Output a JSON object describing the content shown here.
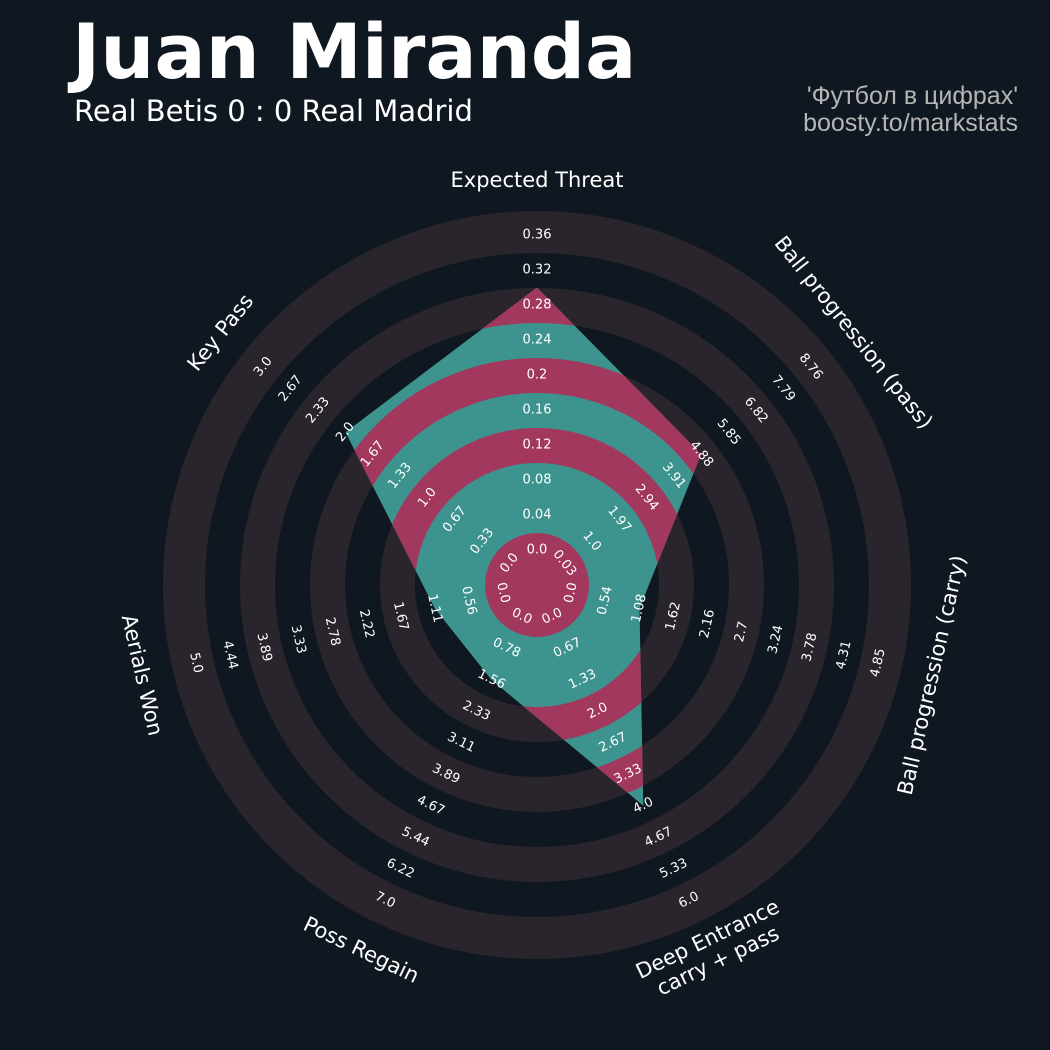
{
  "header": {
    "player_name": "Juan Miranda",
    "match": "Real Betis 0 : 0 Real Madrid",
    "credit_line1": "'Футбол в цифрах'",
    "credit_line2": "boosty.to/markstats"
  },
  "colors": {
    "background": "#0f1820",
    "ring": "#2a252c",
    "polygon_teal": "#3d948f",
    "polygon_magenta": "#a3385e",
    "text": "#ffffff",
    "credit": "#b5b5b5"
  },
  "chart_data": {
    "type": "radar",
    "title": "Juan Miranda",
    "subtitle": "Real Betis 0 : 0 Real Madrid",
    "axes": [
      {
        "label": [
          "Expected Threat"
        ],
        "ticks": [
          "0.0",
          "0.04",
          "0.08",
          "0.12",
          "0.16",
          "0.2",
          "0.24",
          "0.28",
          "0.32",
          "0.36"
        ],
        "min": 0.0,
        "max": 0.36,
        "value": 0.3
      },
      {
        "label": [
          "Ball progression (pass)"
        ],
        "ticks": [
          "0.03",
          "1.0",
          "1.97",
          "2.94",
          "3.91",
          "4.88",
          "5.85",
          "6.82",
          "7.79",
          "8.76"
        ],
        "min": 0.03,
        "max": 8.76,
        "value": 4.88
      },
      {
        "label": [
          "Ball progression (carry)"
        ],
        "ticks": [
          "0.0",
          "0.54",
          "1.08",
          "1.62",
          "2.16",
          "2.7",
          "3.24",
          "3.78",
          "4.31",
          "4.85"
        ],
        "min": 0.0,
        "max": 4.85,
        "value": 1.08
      },
      {
        "label": [
          "Deep Entrance",
          "carry + pass"
        ],
        "ticks": [
          "0.0",
          "0.67",
          "1.33",
          "2.0",
          "2.67",
          "3.33",
          "4.0",
          "4.67",
          "5.33",
          "6.0"
        ],
        "min": 0.0,
        "max": 6.0,
        "value": 4.0
      },
      {
        "label": [
          "Poss Regain"
        ],
        "ticks": [
          "0.0",
          "0.78",
          "1.56",
          "2.33",
          "3.11",
          "3.89",
          "4.67",
          "5.44",
          "6.22",
          "7.0"
        ],
        "min": 0.0,
        "max": 7.0,
        "value": 1.56
      },
      {
        "label": [
          "Aerials Won"
        ],
        "ticks": [
          "0.0",
          "0.56",
          "1.11",
          "1.67",
          "2.22",
          "2.78",
          "3.33",
          "3.89",
          "4.44",
          "5.0"
        ],
        "min": 0.0,
        "max": 5.0,
        "value": 1.11
      },
      {
        "label": [
          "Key Pass"
        ],
        "ticks": [
          "0.0",
          "0.33",
          "0.67",
          "1.0",
          "1.33",
          "1.67",
          "2.0",
          "2.33",
          "2.67",
          "3.0"
        ],
        "min": 0.0,
        "max": 3.0,
        "value": 2.0
      }
    ]
  }
}
